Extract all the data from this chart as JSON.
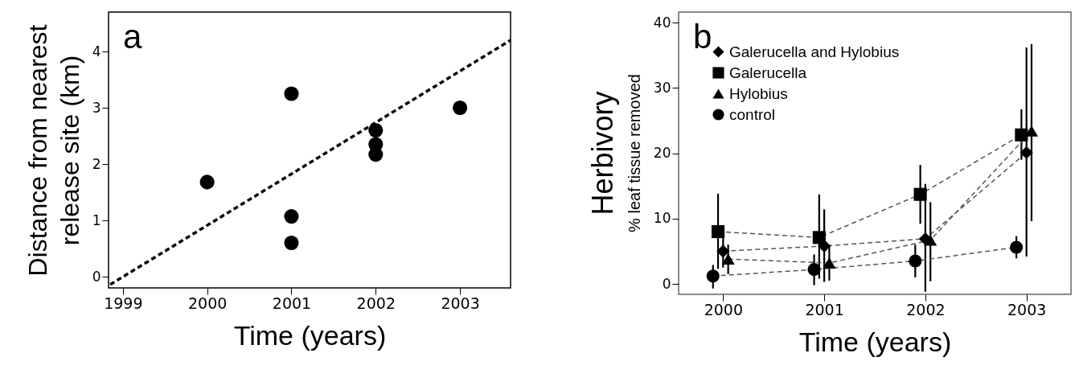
{
  "chart_data": [
    {
      "type": "scatter",
      "xlabel": "Time (years)",
      "ylabel": "Distance from nearest\nrelease site (km)",
      "annotations": [
        "a"
      ],
      "xlim": [
        1998.83,
        2003.6
      ],
      "ylim": [
        -0.2,
        4.7
      ],
      "xticks": [
        1999,
        2000,
        2001,
        2002,
        2003
      ],
      "yticks": [
        0,
        1,
        2,
        3,
        4
      ],
      "grid": false,
      "marker": "circle",
      "series": [
        {
          "color": "#000000",
          "x": [
            2000,
            2001,
            2001,
            2001,
            2002,
            2002,
            2002,
            2003
          ],
          "values": [
            1.68,
            3.25,
            1.07,
            0.6,
            2.6,
            2.35,
            2.17,
            3.0
          ]
        },
        {
          "type": "line",
          "line_style": "dashed",
          "marker": "none",
          "color": "#000000",
          "x": [
            1998.85,
            2003.6
          ],
          "values": [
            -0.14,
            4.2
          ]
        }
      ]
    },
    {
      "type": "line",
      "xlabel": "Time (years)",
      "ylabel": "Herbivory\n% leaf tissue removed",
      "annotations": [
        "b"
      ],
      "xlim": [
        1999.56,
        2003.44
      ],
      "ylim": [
        -1.6,
        41.6
      ],
      "xticks": [
        2000,
        2001,
        2002,
        2003
      ],
      "yticks": [
        0,
        10,
        20,
        30,
        40
      ],
      "grid": false,
      "legend": "top left",
      "line_style": "dashed",
      "series": [
        {
          "name": "Galerucella and Hylobius",
          "marker": "diamond",
          "color": "#000000",
          "x": [
            2000,
            2001,
            2002,
            2003
          ],
          "values": [
            5.0,
            5.8,
            6.9,
            20.1
          ],
          "errors": [
            [
              2.5,
              7.5
            ],
            [
              0.3,
              11.4
            ],
            [
              -1.2,
              15.3
            ],
            [
              4.2,
              36.2
            ]
          ]
        },
        {
          "name": "Galerucella",
          "marker": "square",
          "color": "#000000",
          "x": [
            1999.95,
            2000.95,
            2001.95,
            2002.95
          ],
          "values": [
            8.0,
            7.1,
            13.7,
            22.8
          ],
          "errors": [
            [
              2.3,
              13.8
            ],
            [
              0.8,
              13.7
            ],
            [
              9.2,
              18.2
            ],
            [
              19.0,
              26.7
            ]
          ]
        },
        {
          "name": "Hylobius",
          "marker": "triangle",
          "color": "#000000",
          "x": [
            2000.05,
            2001.05,
            2002.05,
            2003.05
          ],
          "values": [
            3.8,
            3.2,
            6.7,
            23.4
          ],
          "errors": [
            [
              1.5,
              6.0
            ],
            [
              0.5,
              6.0
            ],
            [
              0.4,
              12.5
            ],
            [
              9.6,
              36.7
            ]
          ]
        },
        {
          "name": "control",
          "marker": "circle",
          "color": "#000000",
          "x": [
            1999.9,
            2000.9,
            2001.9,
            2002.9
          ],
          "values": [
            1.2,
            2.2,
            3.5,
            5.6
          ],
          "errors": [
            [
              -0.7,
              2.9
            ],
            [
              -0.2,
              4.5
            ],
            [
              1.0,
              6.0
            ],
            [
              3.9,
              7.3
            ]
          ]
        }
      ]
    }
  ]
}
